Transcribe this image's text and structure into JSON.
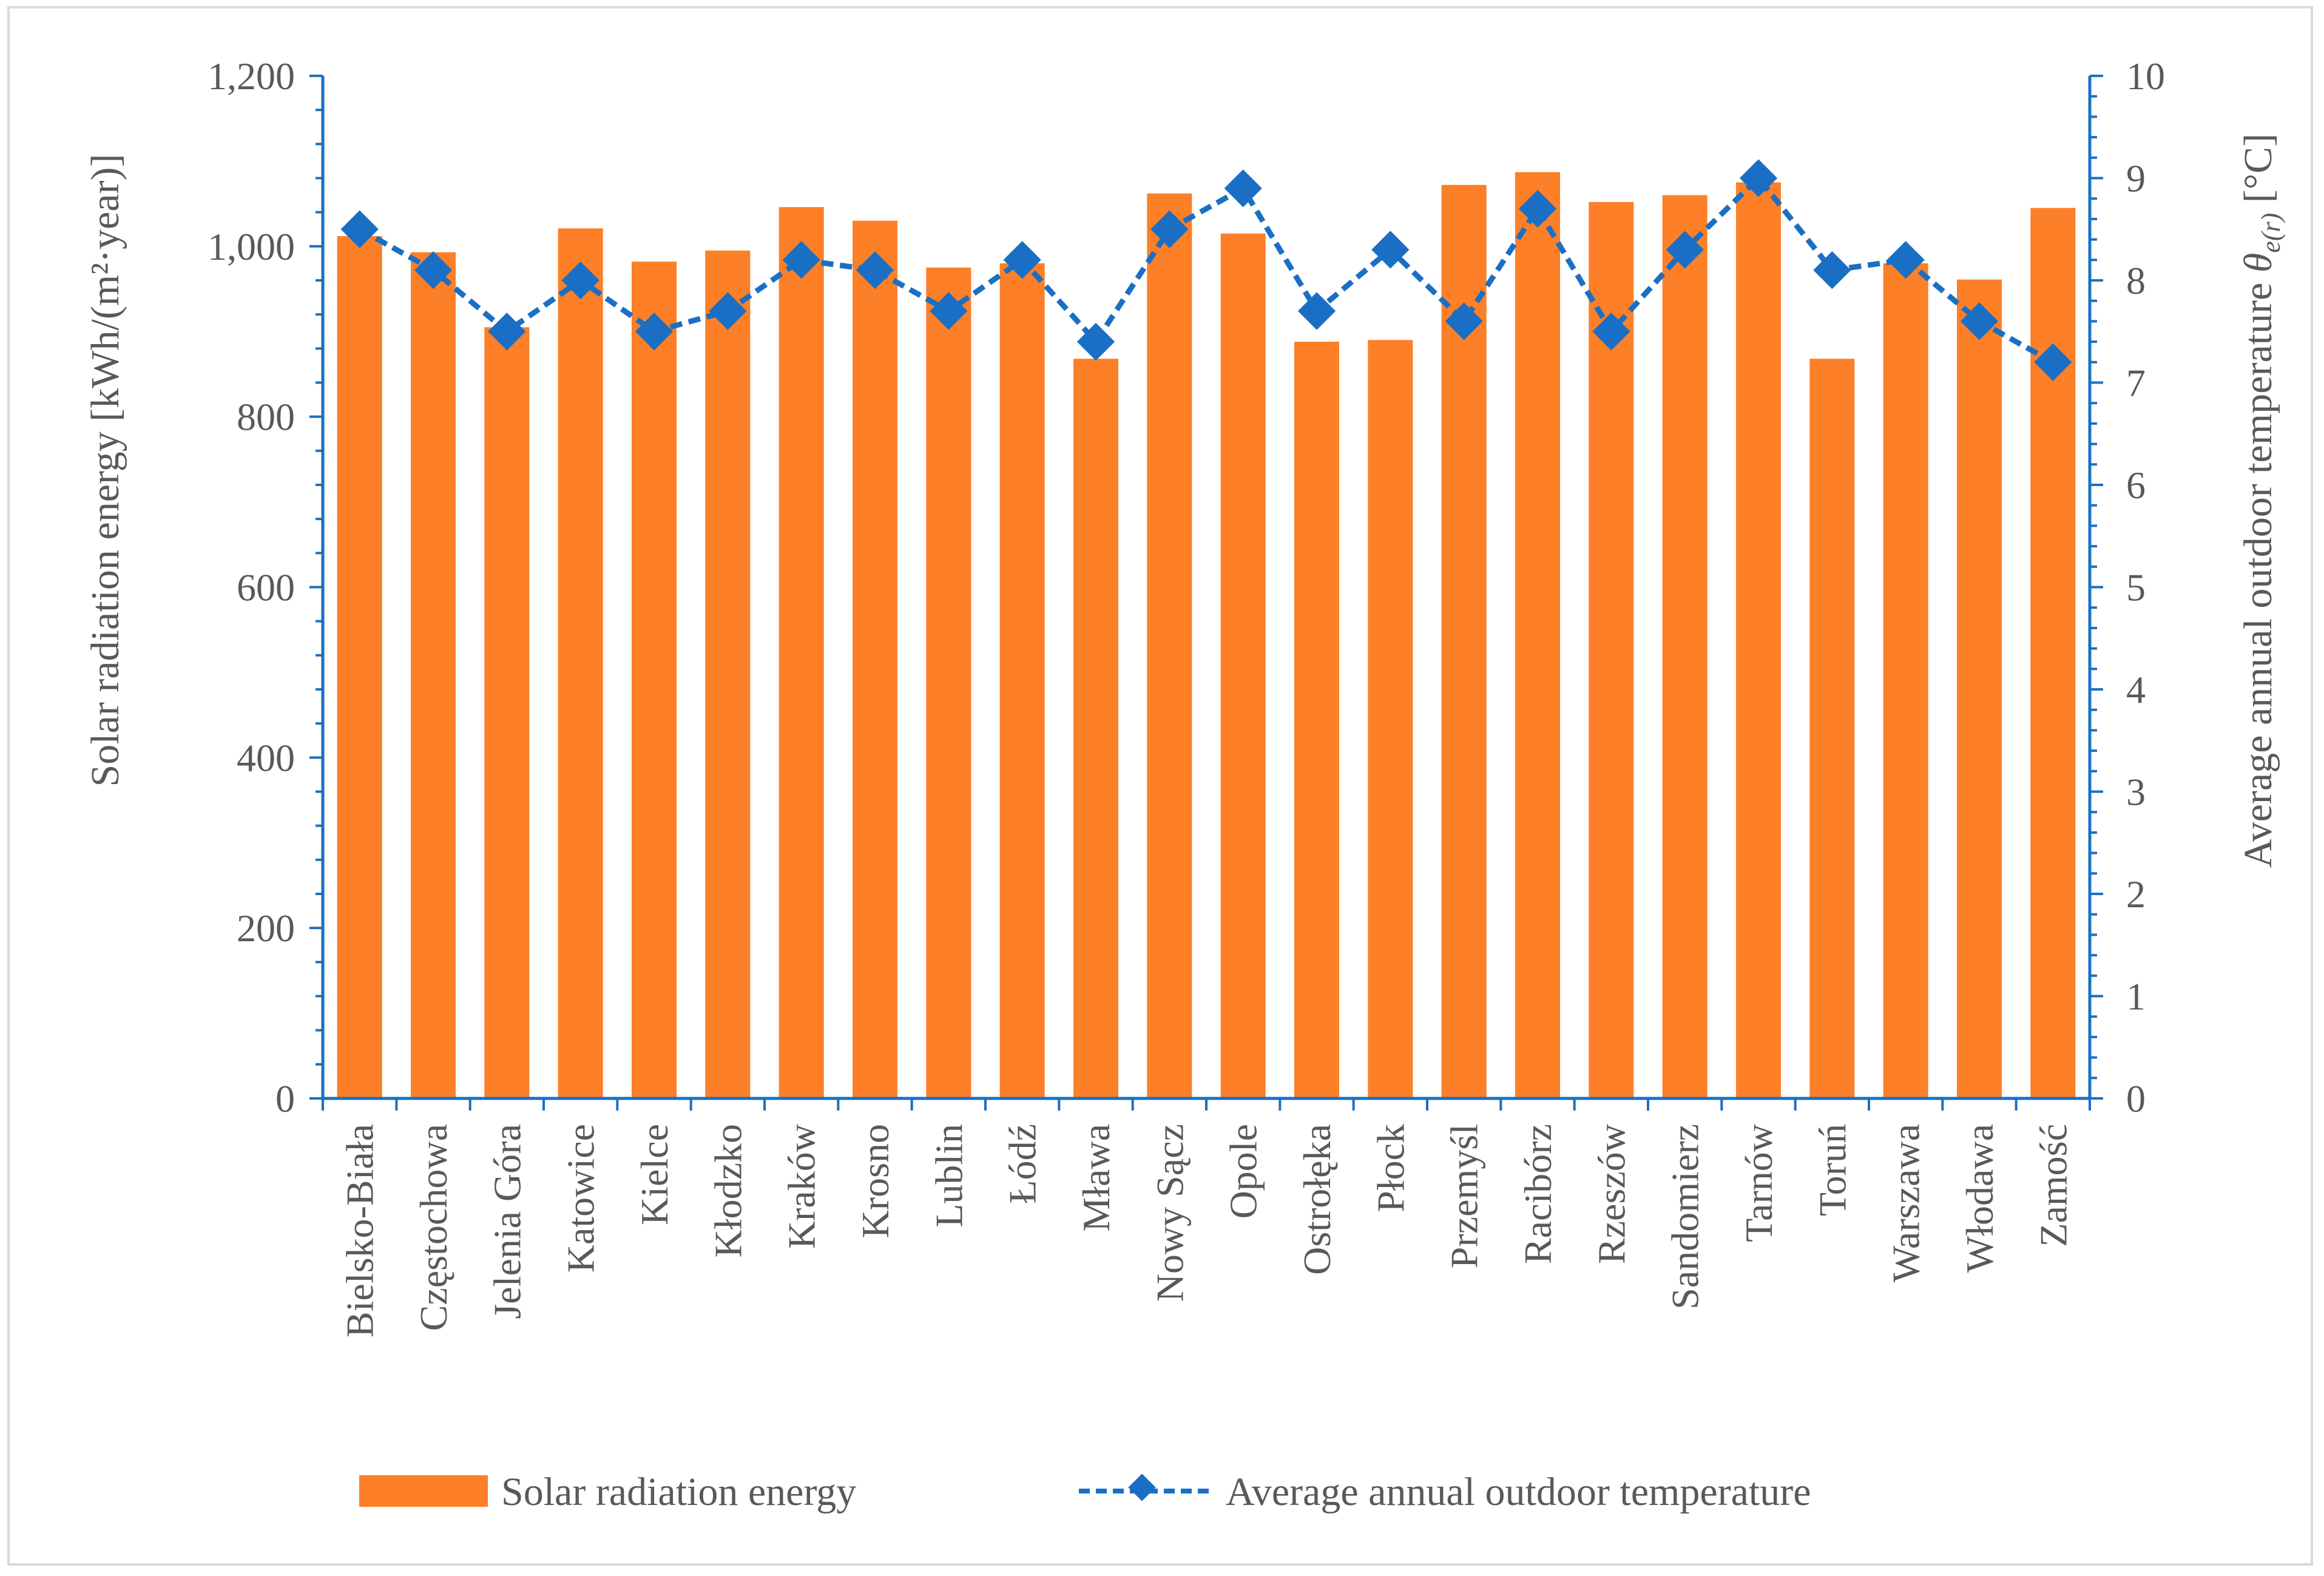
{
  "chart_data": {
    "type": "bar+line",
    "categories": [
      "Bielsko-Biała",
      "Częstochowa",
      "Jelenia Góra",
      "Katowice",
      "Kielce",
      "Kłodzko",
      "Kraków",
      "Krosno",
      "Lublin",
      "Łódź",
      "Mława",
      "Nowy Sącz",
      "Opole",
      "Ostrołęka",
      "Płock",
      "Przemyśl",
      "Racibórz",
      "Rzeszów",
      "Sandomierz",
      "Tarnów",
      "Toruń",
      "Warszawa",
      "Włodawa",
      "Zamość"
    ],
    "series": [
      {
        "name": "Solar radiation energy",
        "type": "bar",
        "axis": "left",
        "color": "#fd7f27",
        "values": [
          1012,
          993,
          905,
          1021,
          982,
          995,
          1046,
          1030,
          975,
          980,
          868,
          1062,
          1015,
          888,
          890,
          1072,
          1087,
          1052,
          1060,
          1075,
          868,
          980,
          961,
          1045
        ]
      },
      {
        "name": "Average annual outdoor temperature",
        "type": "line",
        "axis": "right",
        "color": "#1a6fc4",
        "values": [
          8.5,
          8.1,
          7.5,
          8.0,
          7.5,
          7.7,
          8.2,
          8.1,
          7.7,
          8.2,
          7.4,
          8.5,
          8.9,
          7.7,
          8.3,
          7.6,
          8.7,
          7.5,
          8.3,
          9.0,
          8.1,
          8.2,
          7.6,
          7.2
        ]
      }
    ],
    "y_left": {
      "label": "Solar radiation energy [kWh/(m²·year)]",
      "ylim": [
        0,
        1200
      ],
      "ticks": [
        0,
        200,
        400,
        600,
        800,
        1000,
        1200
      ],
      "tick_labels": [
        "0",
        "200",
        "400",
        "600",
        "800",
        "1,000",
        "1,200"
      ]
    },
    "y_right": {
      "label_main": "Average annual outdoor temperature ",
      "label_symbol": "θ",
      "label_sub": "e(r)",
      "label_unit": " [°C]",
      "ylim": [
        0,
        10
      ],
      "ticks": [
        0,
        1,
        2,
        3,
        4,
        5,
        6,
        7,
        8,
        9,
        10
      ],
      "tick_labels": [
        "0",
        "1",
        "2",
        "3",
        "4",
        "5",
        "6",
        "7",
        "8",
        "9",
        "10"
      ]
    },
    "legend": {
      "placement": "bottom",
      "items": [
        "Solar radiation energy",
        "Average annual outdoor temperature"
      ]
    },
    "grid": false
  }
}
